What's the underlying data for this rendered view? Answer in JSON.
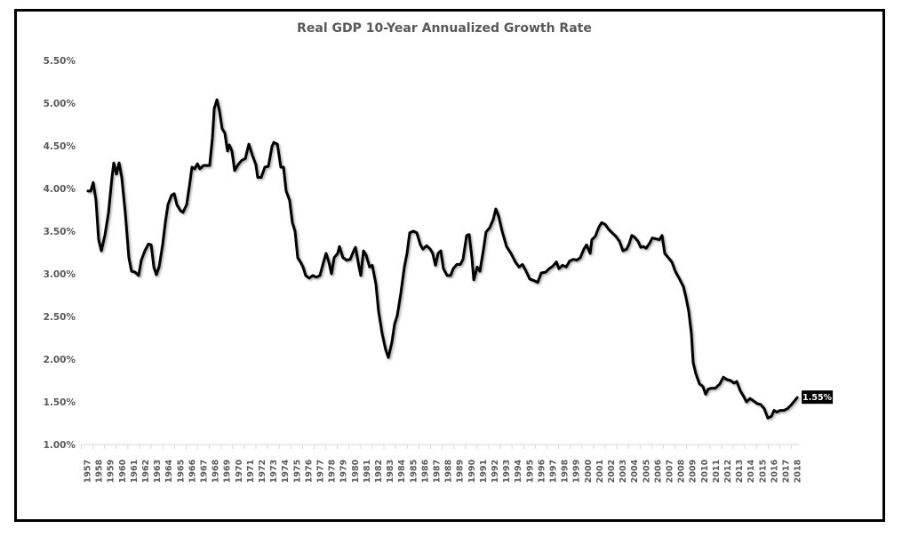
{
  "chart_data": {
    "type": "line",
    "title": "Real GDP 10-Year Annualized Growth Rate",
    "xlabel": "",
    "ylabel": "",
    "ylim": [
      1.0,
      5.5
    ],
    "xlim": [
      1957,
      2018
    ],
    "grid": false,
    "yticks": [
      "1.00%",
      "1.50%",
      "2.00%",
      "2.50%",
      "3.00%",
      "3.50%",
      "4.00%",
      "4.50%",
      "5.00%",
      "5.50%"
    ],
    "ytick_values": [
      1.0,
      1.5,
      2.0,
      2.5,
      3.0,
      3.5,
      4.0,
      4.5,
      5.0,
      5.5
    ],
    "xticks": [
      "1957",
      "1958",
      "1959",
      "1960",
      "1961",
      "1962",
      "1963",
      "1964",
      "1965",
      "1966",
      "1967",
      "1968",
      "1969",
      "1970",
      "1971",
      "1972",
      "1973",
      "1974",
      "1975",
      "1976",
      "1977",
      "1978",
      "1979",
      "1980",
      "1981",
      "1982",
      "1983",
      "1984",
      "1985",
      "1986",
      "1987",
      "1988",
      "1989",
      "1990",
      "1991",
      "1992",
      "1993",
      "1994",
      "1995",
      "1996",
      "1997",
      "1998",
      "1999",
      "2000",
      "2001",
      "2002",
      "2003",
      "2004",
      "2005",
      "2006",
      "2007",
      "2008",
      "2009",
      "2010",
      "2011",
      "2012",
      "2013",
      "2014",
      "2015",
      "2016",
      "2017",
      "2018"
    ],
    "line_color": "#000000",
    "data_label": {
      "text": "1.55%",
      "year": 2018,
      "value": 1.55
    },
    "series": [
      {
        "x": [
          1957.08,
          1957.31,
          1957.53,
          1957.76,
          1957.99,
          1958.22,
          1958.53,
          1958.83,
          1959.14,
          1959.29,
          1959.52,
          1959.75,
          1959.98,
          1960.28,
          1960.59,
          1960.82,
          1961.12,
          1961.43,
          1961.66,
          1961.96,
          1962.27,
          1962.5,
          1962.73,
          1962.95,
          1963.18,
          1963.49,
          1963.72,
          1963.95,
          1964.25,
          1964.48,
          1964.71,
          1965.02,
          1965.24,
          1965.55,
          1965.78,
          1966.01,
          1966.24,
          1966.47,
          1966.69,
          1967.0,
          1967.23,
          1967.53,
          1967.76,
          1967.92,
          1968.15,
          1968.37,
          1968.6,
          1968.83,
          1969.06,
          1969.21,
          1969.44,
          1969.67,
          1969.98,
          1970.28,
          1970.59,
          1970.89,
          1971.2,
          1971.5,
          1971.66,
          1971.96,
          1972.27,
          1972.57,
          1972.88,
          1973.03,
          1973.34,
          1973.64,
          1973.87,
          1974.1,
          1974.4,
          1974.63,
          1974.86,
          1975.09,
          1975.32,
          1975.55,
          1975.78,
          1976.08,
          1976.39,
          1976.69,
          1977.0,
          1977.31,
          1977.53,
          1977.76,
          1977.99,
          1978.22,
          1978.53,
          1978.68,
          1978.98,
          1979.29,
          1979.6,
          1979.9,
          1980.05,
          1980.36,
          1980.51,
          1980.74,
          1980.97,
          1981.27,
          1981.5,
          1981.81,
          1982.04,
          1982.34,
          1982.65,
          1982.88,
          1983.18,
          1983.41,
          1983.64,
          1983.95,
          1984.25,
          1984.48,
          1984.71,
          1985.02,
          1985.32,
          1985.63,
          1985.85,
          1986.16,
          1986.47,
          1986.69,
          1986.92,
          1987.15,
          1987.38,
          1987.61,
          1987.92,
          1988.22,
          1988.45,
          1988.76,
          1989.06,
          1989.29,
          1989.6,
          1989.82,
          1990.05,
          1990.21,
          1990.51,
          1990.74,
          1991.05,
          1991.27,
          1991.58,
          1991.89,
          1992.11,
          1992.34,
          1992.65,
          1993.03,
          1993.41,
          1993.79,
          1994.1,
          1994.4,
          1994.71,
          1995.02,
          1995.4,
          1995.7,
          1996.01,
          1996.39,
          1996.69,
          1997.0,
          1997.31,
          1997.53,
          1997.84,
          1998.15,
          1998.45,
          1998.76,
          1999.06,
          1999.37,
          1999.67,
          1999.9,
          2000.21,
          2000.36,
          2000.66,
          2000.97,
          2001.2,
          2001.5,
          2001.81,
          2002.11,
          2002.42,
          2002.73,
          2003.03,
          2003.34,
          2003.56,
          2003.79,
          2004.02,
          2004.33,
          2004.56,
          2004.79,
          2005.02,
          2005.32,
          2005.55,
          2005.85,
          2006.16,
          2006.39,
          2006.62,
          2006.92,
          2007.23,
          2007.53,
          2007.92,
          2008.22,
          2008.45,
          2008.68,
          2008.91,
          2009.06,
          2009.29,
          2009.6,
          2009.9,
          2010.13,
          2010.36,
          2010.66,
          2010.97,
          2011.35,
          2011.66,
          2011.96,
          2012.27,
          2012.57,
          2012.8,
          2013.11,
          2013.41,
          2013.64,
          2013.95,
          2014.25,
          2014.56,
          2014.86,
          2015.17,
          2015.47,
          2015.78,
          2016.01,
          2016.24,
          2016.54,
          2016.85,
          2017.15,
          2017.46,
          2018.0
        ],
        "y": [
          3.97,
          3.97,
          4.07,
          3.86,
          3.4,
          3.27,
          3.45,
          3.71,
          4.13,
          4.3,
          4.17,
          4.3,
          4.13,
          3.71,
          3.19,
          3.03,
          3.02,
          2.98,
          3.16,
          3.27,
          3.35,
          3.34,
          3.08,
          2.99,
          3.08,
          3.34,
          3.6,
          3.81,
          3.92,
          3.94,
          3.81,
          3.74,
          3.72,
          3.81,
          4.02,
          4.25,
          4.23,
          4.29,
          4.23,
          4.27,
          4.27,
          4.27,
          4.59,
          4.94,
          5.04,
          4.91,
          4.7,
          4.65,
          4.44,
          4.51,
          4.44,
          4.21,
          4.28,
          4.33,
          4.35,
          4.52,
          4.39,
          4.28,
          4.13,
          4.13,
          4.25,
          4.26,
          4.49,
          4.54,
          4.52,
          4.25,
          4.25,
          3.97,
          3.86,
          3.6,
          3.5,
          3.19,
          3.14,
          3.08,
          2.98,
          2.95,
          2.98,
          2.96,
          2.98,
          3.14,
          3.24,
          3.14,
          3.0,
          3.19,
          3.24,
          3.32,
          3.19,
          3.16,
          3.17,
          3.27,
          3.31,
          3.08,
          2.98,
          3.27,
          3.22,
          3.08,
          3.1,
          2.88,
          2.56,
          2.3,
          2.11,
          2.02,
          2.2,
          2.41,
          2.51,
          2.77,
          3.08,
          3.24,
          3.48,
          3.5,
          3.48,
          3.34,
          3.29,
          3.33,
          3.29,
          3.24,
          3.1,
          3.24,
          3.27,
          3.06,
          2.98,
          2.98,
          3.06,
          3.11,
          3.11,
          3.17,
          3.45,
          3.46,
          3.19,
          2.93,
          3.08,
          3.03,
          3.29,
          3.49,
          3.54,
          3.64,
          3.76,
          3.68,
          3.5,
          3.32,
          3.24,
          3.14,
          3.08,
          3.11,
          3.03,
          2.94,
          2.92,
          2.9,
          3.01,
          3.02,
          3.06,
          3.09,
          3.14,
          3.06,
          3.1,
          3.08,
          3.15,
          3.17,
          3.16,
          3.19,
          3.29,
          3.34,
          3.24,
          3.4,
          3.44,
          3.55,
          3.6,
          3.58,
          3.52,
          3.48,
          3.44,
          3.38,
          3.27,
          3.29,
          3.35,
          3.45,
          3.43,
          3.38,
          3.31,
          3.32,
          3.3,
          3.36,
          3.42,
          3.41,
          3.4,
          3.45,
          3.24,
          3.19,
          3.14,
          3.03,
          2.93,
          2.85,
          2.72,
          2.56,
          2.3,
          1.96,
          1.83,
          1.71,
          1.68,
          1.59,
          1.65,
          1.66,
          1.66,
          1.71,
          1.79,
          1.76,
          1.75,
          1.72,
          1.74,
          1.63,
          1.56,
          1.5,
          1.54,
          1.51,
          1.48,
          1.47,
          1.42,
          1.31,
          1.33,
          1.4,
          1.38,
          1.4,
          1.4,
          1.42,
          1.46,
          1.55
        ]
      }
    ]
  }
}
